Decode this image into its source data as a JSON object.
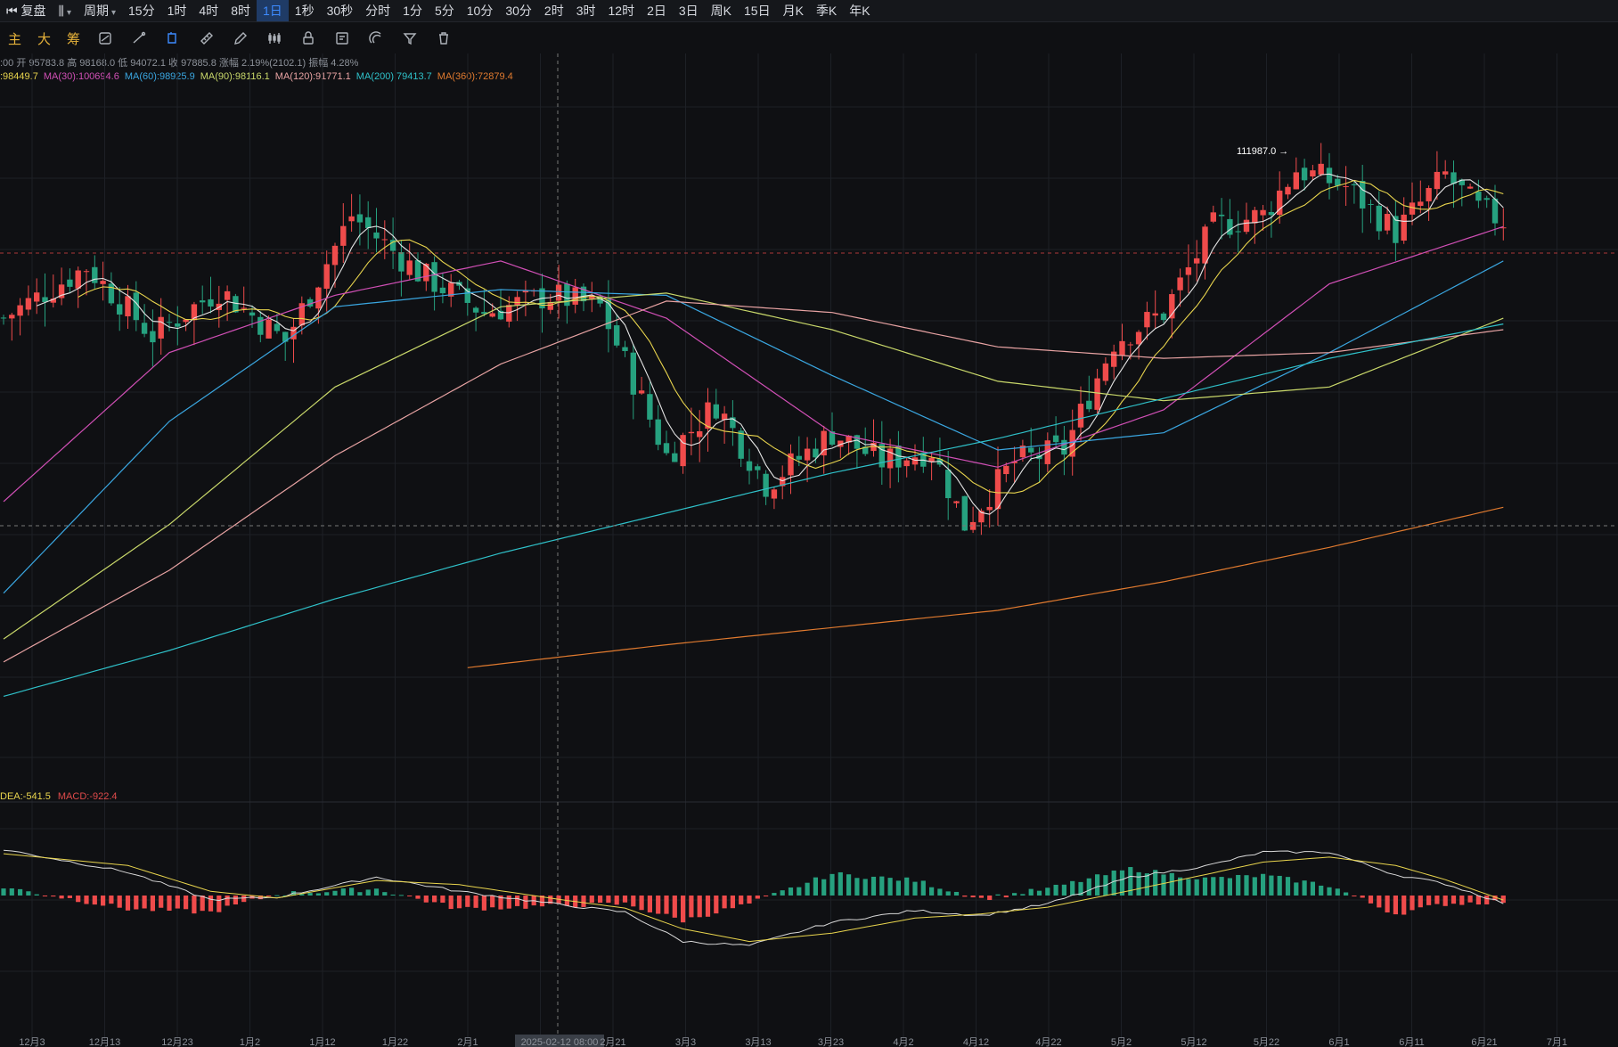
{
  "toolbar": {
    "replay": "复盘",
    "period_label": "周期",
    "intervals": [
      "15分",
      "1时",
      "4时",
      "8时",
      "1日",
      "1秒",
      "30秒",
      "分时",
      "1分",
      "5分",
      "10分",
      "30分",
      "2时",
      "3时",
      "12时",
      "2日",
      "3日",
      "周K",
      "15日",
      "月K",
      "季K",
      "年K"
    ],
    "active_interval": "1日"
  },
  "tools": {
    "main": "主",
    "big": "大",
    "chips": "筹"
  },
  "info_line": {
    "time_fragment": ":00",
    "open": "开 95783.8",
    "high": "高 98168.0",
    "low": "低 94072.1",
    "close": "收 97885.8",
    "change": "涨幅 2.19%(2102.1)",
    "amplitude": "振幅 4.28%"
  },
  "ma_legend": [
    {
      "text": ":98449.7",
      "color": "#e8d44d"
    },
    {
      "text": "MA(30):100694.6",
      "color": "#d04fb5"
    },
    {
      "text": "MA(60):98925.9",
      "color": "#3aa6e0"
    },
    {
      "text": "MA(90):98116.1",
      "color": "#c9d86a"
    },
    {
      "text": "MA(120):91771.1",
      "color": "#e8a3a3"
    },
    {
      "text": "MA(200):79413.7",
      "color": "#2fc1c9"
    },
    {
      "text": "MA(360):72879.4",
      "color": "#e07a2f"
    }
  ],
  "macd_legend": [
    {
      "text": "DEA:-541.5",
      "color": "#e8d44d"
    },
    {
      "text": "MACD:-922.4",
      "color": "#e04b4b"
    }
  ],
  "colors": {
    "up": "#ef4b4b",
    "down": "#26a17f",
    "dif": "#d9d9d9",
    "dea": "#e8d44d"
  },
  "chart_data": {
    "type": "candlestick",
    "x_ticks": [
      "12月3",
      "12月13",
      "12月23",
      "1月2",
      "1月12",
      "1月22",
      "2月1",
      "2025-02-12 08:00",
      "2月21",
      "3月3",
      "3月13",
      "3月23",
      "4月2",
      "4月12",
      "4月22",
      "5月2",
      "5月12",
      "5月22",
      "6月1",
      "6月11",
      "6月21",
      "7月1"
    ],
    "annotation": "111987.0",
    "price_anchor": [
      {
        "x": 0,
        "price": 96000
      },
      {
        "x": 10,
        "price": 100500
      },
      {
        "x": 18,
        "price": 94500
      },
      {
        "x": 26,
        "price": 98500
      },
      {
        "x": 34,
        "price": 94000
      },
      {
        "x": 42,
        "price": 105000
      },
      {
        "x": 50,
        "price": 100000
      },
      {
        "x": 58,
        "price": 96500
      },
      {
        "x": 66,
        "price": 98000
      },
      {
        "x": 72,
        "price": 97000
      },
      {
        "x": 80,
        "price": 84000
      },
      {
        "x": 86,
        "price": 88500
      },
      {
        "x": 92,
        "price": 81500
      },
      {
        "x": 100,
        "price": 86000
      },
      {
        "x": 106,
        "price": 83500
      },
      {
        "x": 112,
        "price": 84500
      },
      {
        "x": 116,
        "price": 78000
      },
      {
        "x": 122,
        "price": 83500
      },
      {
        "x": 128,
        "price": 84500
      },
      {
        "x": 134,
        "price": 94000
      },
      {
        "x": 140,
        "price": 96500
      },
      {
        "x": 146,
        "price": 104000
      },
      {
        "x": 152,
        "price": 105000
      },
      {
        "x": 156,
        "price": 109000
      },
      {
        "x": 162,
        "price": 107500
      },
      {
        "x": 168,
        "price": 103500
      },
      {
        "x": 174,
        "price": 108500
      },
      {
        "x": 178,
        "price": 105500
      },
      {
        "x": 181,
        "price": 104500
      }
    ],
    "ma_curves": [
      {
        "name": "MA(30)",
        "values": [
          [
            0,
            80000
          ],
          [
            20,
            93000
          ],
          [
            40,
            98000
          ],
          [
            60,
            101000
          ],
          [
            80,
            96000
          ],
          [
            100,
            86000
          ],
          [
            120,
            83000
          ],
          [
            140,
            88000
          ],
          [
            160,
            99000
          ],
          [
            181,
            104000
          ]
        ]
      },
      {
        "name": "MA(60)",
        "values": [
          [
            0,
            72000
          ],
          [
            20,
            87000
          ],
          [
            40,
            97000
          ],
          [
            60,
            98500
          ],
          [
            80,
            98000
          ],
          [
            100,
            91000
          ],
          [
            120,
            84500
          ],
          [
            140,
            86000
          ],
          [
            160,
            93000
          ],
          [
            181,
            101000
          ]
        ]
      },
      {
        "name": "MA(90)",
        "values": [
          [
            0,
            68000
          ],
          [
            20,
            78000
          ],
          [
            40,
            90000
          ],
          [
            60,
            97000
          ],
          [
            80,
            98200
          ],
          [
            100,
            95000
          ],
          [
            120,
            90500
          ],
          [
            140,
            88800
          ],
          [
            160,
            90000
          ],
          [
            181,
            96000
          ]
        ]
      },
      {
        "name": "MA(120)",
        "values": [
          [
            0,
            66000
          ],
          [
            20,
            74000
          ],
          [
            40,
            84000
          ],
          [
            60,
            92000
          ],
          [
            80,
            97500
          ],
          [
            100,
            96500
          ],
          [
            120,
            93500
          ],
          [
            140,
            92500
          ],
          [
            160,
            93000
          ],
          [
            181,
            95000
          ]
        ]
      },
      {
        "name": "MA(200)",
        "values": [
          [
            0,
            63000
          ],
          [
            20,
            67000
          ],
          [
            40,
            71500
          ],
          [
            60,
            75500
          ],
          [
            80,
            79000
          ],
          [
            100,
            82500
          ],
          [
            120,
            85500
          ],
          [
            140,
            89000
          ],
          [
            160,
            92500
          ],
          [
            181,
            95500
          ]
        ]
      },
      {
        "name": "MA(360)",
        "values": [
          [
            56,
            65500
          ],
          [
            80,
            67500
          ],
          [
            100,
            69000
          ],
          [
            120,
            70500
          ],
          [
            140,
            73000
          ],
          [
            160,
            76000
          ],
          [
            181,
            79500
          ]
        ]
      }
    ],
    "macd_anchor": [
      {
        "x": 0,
        "dif": 5500,
        "dea": 5000
      },
      {
        "x": 15,
        "dif": 2800,
        "dea": 3600
      },
      {
        "x": 25,
        "dif": -500,
        "dea": 500
      },
      {
        "x": 33,
        "dif": -200,
        "dea": -300
      },
      {
        "x": 45,
        "dif": 2200,
        "dea": 1800
      },
      {
        "x": 55,
        "dif": 500,
        "dea": 1300
      },
      {
        "x": 68,
        "dif": -1200,
        "dea": -600
      },
      {
        "x": 75,
        "dif": -2000,
        "dea": -1500
      },
      {
        "x": 82,
        "dif": -5500,
        "dea": -4000
      },
      {
        "x": 90,
        "dif": -6000,
        "dea": -5500
      },
      {
        "x": 100,
        "dif": -3200,
        "dea": -4500
      },
      {
        "x": 110,
        "dif": -1800,
        "dea": -2700
      },
      {
        "x": 118,
        "dif": -2400,
        "dea": -2200
      },
      {
        "x": 126,
        "dif": -1000,
        "dea": -1400
      },
      {
        "x": 136,
        "dif": 2200,
        "dea": 600
      },
      {
        "x": 145,
        "dif": 3500,
        "dea": 2500
      },
      {
        "x": 152,
        "dif": 5200,
        "dea": 4000
      },
      {
        "x": 160,
        "dif": 5200,
        "dea": 4600
      },
      {
        "x": 168,
        "dif": 2500,
        "dea": 3600
      },
      {
        "x": 174,
        "dif": 1400,
        "dea": 1900
      },
      {
        "x": 181,
        "dif": -900,
        "dea": -541
      }
    ],
    "y_range_price": [
      60000,
      116000
    ],
    "y_range_macd": [
      -8000,
      8000
    ]
  }
}
